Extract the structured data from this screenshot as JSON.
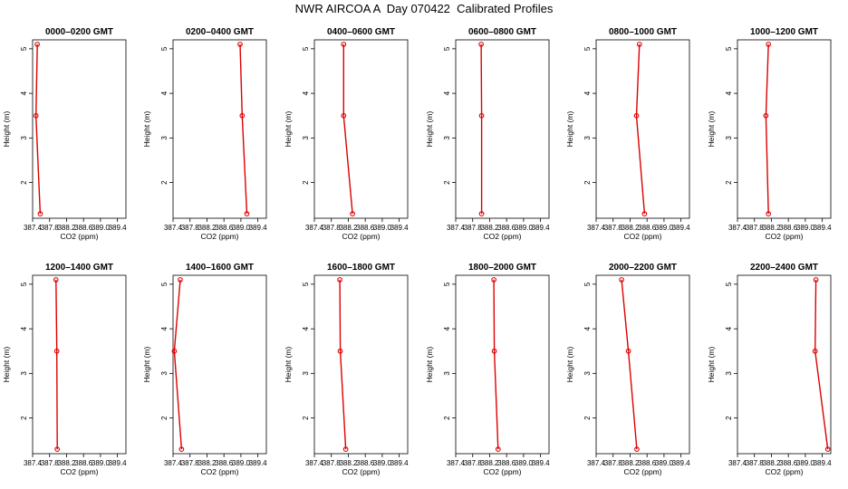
{
  "page": {
    "title": "NWR AIRCOA A  Day 070422  Calibrated Profiles"
  },
  "colors": {
    "series": "#dd0000",
    "axis": "#000000",
    "background": "#ffffff"
  },
  "chart_data": [
    {
      "type": "line",
      "title": "0000–0200 GMT",
      "xlabel": "CO2 (ppm)",
      "ylabel": "Height (m)",
      "xlim": [
        387.4,
        389.6
      ],
      "ylim": [
        1.2,
        5.2
      ],
      "x_ticks": [
        "387.4",
        "387.8",
        "388.2",
        "388.6",
        "389.0",
        "389.4"
      ],
      "y_ticks": [
        "2",
        "3",
        "4",
        "5"
      ],
      "x": [
        387.51,
        387.48,
        387.58
      ],
      "y": [
        5.1,
        3.5,
        1.3
      ]
    },
    {
      "type": "line",
      "title": "0200–0400 GMT",
      "xlabel": "CO2 (ppm)",
      "ylabel": "Height (m)",
      "xlim": [
        387.4,
        389.6
      ],
      "ylim": [
        1.2,
        5.2
      ],
      "x_ticks": [
        "387.4",
        "387.8",
        "388.2",
        "388.6",
        "389.0",
        "389.4"
      ],
      "y_ticks": [
        "2",
        "3",
        "4",
        "5"
      ],
      "x": [
        388.98,
        389.03,
        389.14
      ],
      "y": [
        5.1,
        3.5,
        1.3
      ]
    },
    {
      "type": "line",
      "title": "0400–0600 GMT",
      "xlabel": "CO2 (ppm)",
      "ylabel": "Height (m)",
      "xlim": [
        387.4,
        389.6
      ],
      "ylim": [
        1.2,
        5.2
      ],
      "x_ticks": [
        "387.4",
        "387.8",
        "388.2",
        "388.6",
        "389.0",
        "389.4"
      ],
      "y_ticks": [
        "2",
        "3",
        "4",
        "5"
      ],
      "x": [
        388.09,
        388.09,
        388.3
      ],
      "y": [
        5.1,
        3.5,
        1.3
      ]
    },
    {
      "type": "line",
      "title": "0600–0800 GMT",
      "xlabel": "CO2 (ppm)",
      "ylabel": "Height (m)",
      "xlim": [
        387.4,
        389.6
      ],
      "ylim": [
        1.2,
        5.2
      ],
      "x_ticks": [
        "387.4",
        "387.8",
        "388.2",
        "388.6",
        "389.0",
        "389.4"
      ],
      "y_ticks": [
        "2",
        "3",
        "4",
        "5"
      ],
      "x": [
        388.0,
        388.01,
        388.01
      ],
      "y": [
        5.1,
        3.5,
        1.3
      ]
    },
    {
      "type": "line",
      "title": "0800–1000 GMT",
      "xlabel": "CO2 (ppm)",
      "ylabel": "Height (m)",
      "xlim": [
        387.4,
        389.6
      ],
      "ylim": [
        1.2,
        5.2
      ],
      "x_ticks": [
        "387.4",
        "387.8",
        "388.2",
        "388.6",
        "389.0",
        "389.4"
      ],
      "y_ticks": [
        "2",
        "3",
        "4",
        "5"
      ],
      "x": [
        388.42,
        388.35,
        388.54
      ],
      "y": [
        5.1,
        3.5,
        1.3
      ]
    },
    {
      "type": "line",
      "title": "1000–1200 GMT",
      "xlabel": "CO2 (ppm)",
      "ylabel": "Height (m)",
      "xlim": [
        387.4,
        389.6
      ],
      "ylim": [
        1.2,
        5.2
      ],
      "x_ticks": [
        "387.4",
        "387.8",
        "388.2",
        "388.6",
        "389.0",
        "389.4"
      ],
      "y_ticks": [
        "2",
        "3",
        "4",
        "5"
      ],
      "x": [
        388.13,
        388.07,
        388.13
      ],
      "y": [
        5.1,
        3.5,
        1.3
      ]
    },
    {
      "type": "line",
      "title": "1200–1400 GMT",
      "xlabel": "CO2 (ppm)",
      "ylabel": "Height (m)",
      "xlim": [
        387.4,
        389.6
      ],
      "ylim": [
        1.2,
        5.2
      ],
      "x_ticks": [
        "387.4",
        "387.8",
        "388.2",
        "388.6",
        "389.0",
        "389.4"
      ],
      "y_ticks": [
        "2",
        "3",
        "4",
        "5"
      ],
      "x": [
        387.95,
        387.97,
        387.98
      ],
      "y": [
        5.1,
        3.5,
        1.3
      ]
    },
    {
      "type": "line",
      "title": "1400–1600 GMT",
      "xlabel": "CO2 (ppm)",
      "ylabel": "Height (m)",
      "xlim": [
        387.4,
        389.6
      ],
      "ylim": [
        1.2,
        5.2
      ],
      "x_ticks": [
        "387.4",
        "387.8",
        "388.2",
        "388.6",
        "389.0",
        "389.4"
      ],
      "y_ticks": [
        "2",
        "3",
        "4",
        "5"
      ],
      "x": [
        387.57,
        387.43,
        387.6
      ],
      "y": [
        5.1,
        3.5,
        1.3
      ]
    },
    {
      "type": "line",
      "title": "1600–1800 GMT",
      "xlabel": "CO2 (ppm)",
      "ylabel": "Height (m)",
      "xlim": [
        387.4,
        389.6
      ],
      "ylim": [
        1.2,
        5.2
      ],
      "x_ticks": [
        "387.4",
        "387.8",
        "388.2",
        "388.6",
        "389.0",
        "389.4"
      ],
      "y_ticks": [
        "2",
        "3",
        "4",
        "5"
      ],
      "x": [
        388.0,
        388.01,
        388.14
      ],
      "y": [
        5.1,
        3.5,
        1.3
      ]
    },
    {
      "type": "line",
      "title": "1800–2000 GMT",
      "xlabel": "CO2 (ppm)",
      "ylabel": "Height (m)",
      "xlim": [
        387.4,
        389.6
      ],
      "ylim": [
        1.2,
        5.2
      ],
      "x_ticks": [
        "387.4",
        "387.8",
        "388.2",
        "388.6",
        "389.0",
        "389.4"
      ],
      "y_ticks": [
        "2",
        "3",
        "4",
        "5"
      ],
      "x": [
        388.3,
        388.31,
        388.4
      ],
      "y": [
        5.1,
        3.5,
        1.3
      ]
    },
    {
      "type": "line",
      "title": "2000–2200 GMT",
      "xlabel": "CO2 (ppm)",
      "ylabel": "Height (m)",
      "xlim": [
        387.4,
        389.6
      ],
      "ylim": [
        1.2,
        5.2
      ],
      "x_ticks": [
        "387.4",
        "387.8",
        "388.2",
        "388.6",
        "389.0",
        "389.4"
      ],
      "y_ticks": [
        "2",
        "3",
        "4",
        "5"
      ],
      "x": [
        388.0,
        388.16,
        388.36
      ],
      "y": [
        5.1,
        3.5,
        1.3
      ]
    },
    {
      "type": "line",
      "title": "2200–2400 GMT",
      "xlabel": "CO2 (ppm)",
      "ylabel": "Height (m)",
      "xlim": [
        387.4,
        389.6
      ],
      "ylim": [
        1.2,
        5.2
      ],
      "x_ticks": [
        "387.4",
        "387.8",
        "388.2",
        "388.6",
        "389.0",
        "389.4"
      ],
      "y_ticks": [
        "2",
        "3",
        "4",
        "5"
      ],
      "x": [
        389.25,
        389.23,
        389.53
      ],
      "y": [
        5.1,
        3.5,
        1.3
      ]
    }
  ]
}
